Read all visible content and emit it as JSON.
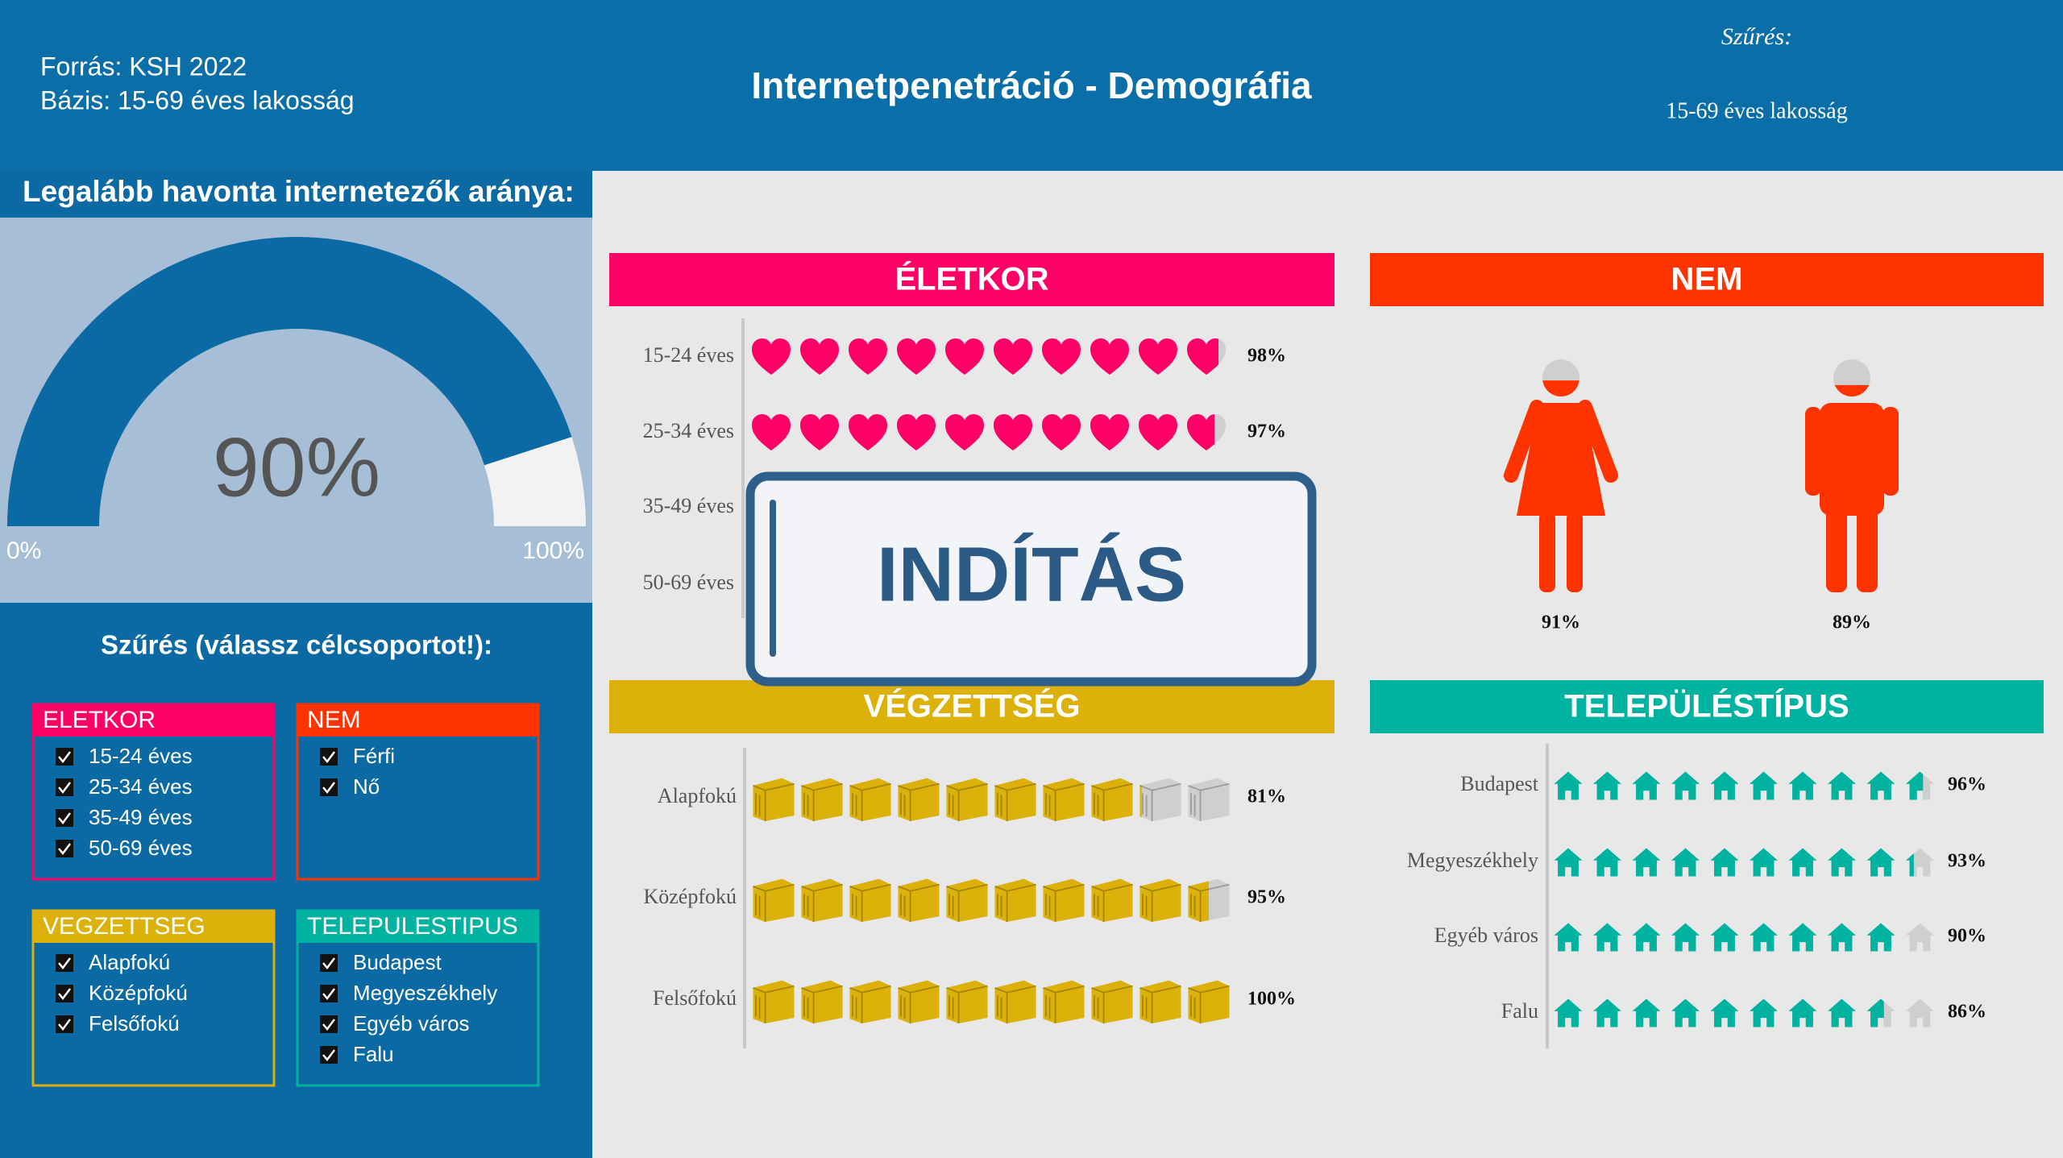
{
  "header": {
    "source": "Forrás: KSH 2022",
    "base": "Bázis: 15-69 éves lakosság",
    "title": "Internetpenetráció - Demográfia",
    "filter_label": "Szűrés:",
    "filter_value": "15-69 éves lakosság"
  },
  "gauge": {
    "title": "Legalább havonta internetezők aránya:",
    "value": 90,
    "value_label": "90%",
    "range": [
      0,
      100
    ],
    "range_labels": [
      "0%",
      "100%"
    ]
  },
  "filters": {
    "title": "Szűrés (válassz célcsoportot!):",
    "groups": [
      {
        "name": "ELETKOR",
        "color": "#ff0066",
        "items": [
          "15-24 éves",
          "25-34 éves",
          "35-49 éves",
          "50-69 éves"
        ]
      },
      {
        "name": "NEM",
        "color": "#ff3300",
        "items": [
          "Férfi",
          "Nő"
        ]
      },
      {
        "name": "VEGZETTSEG",
        "color": "#dcb20a",
        "items": [
          "Alapfokú",
          "Középfokú",
          "Felsőfokú"
        ]
      },
      {
        "name": "TELEPULESTIPUS",
        "color": "#00b2a0",
        "items": [
          "Budapest",
          "Megyeszékhely",
          "Egyéb város",
          "Falu"
        ]
      }
    ]
  },
  "panels": [
    {
      "title": "ÉLETKOR",
      "color": "#ff0066",
      "icon": "heart",
      "rows": [
        {
          "label": "15-24 éves",
          "value": 98,
          "value_label": "98%"
        },
        {
          "label": "25-34 éves",
          "value": 97,
          "value_label": "97%"
        },
        {
          "label": "35-49 éves"
        },
        {
          "label": "50-69 éves"
        }
      ]
    },
    {
      "title": "NEM",
      "color": "#ff3300",
      "icon": "person",
      "rows": [
        {
          "value": 91,
          "value_label": "91%"
        },
        {
          "value": 89,
          "value_label": "89%"
        }
      ]
    },
    {
      "title": "VÉGZETTSÉG",
      "color": "#dcb20a",
      "icon": "book",
      "rows": [
        {
          "label": "Alapfokú",
          "value": 81,
          "value_label": "81%"
        },
        {
          "label": "Középfokú",
          "value": 95,
          "value_label": "95%"
        },
        {
          "label": "Felsőfokú",
          "value": 100,
          "value_label": "100%"
        }
      ]
    },
    {
      "title": "TELEPÜLÉSTÍPUS",
      "color": "#00b2a0",
      "icon": "house",
      "rows": [
        {
          "label": "Budapest",
          "value": 96,
          "value_label": "96%"
        },
        {
          "label": "Megyeszékhely",
          "value": 93,
          "value_label": "93%"
        },
        {
          "label": "Egyéb város",
          "value": 90,
          "value_label": "90%"
        },
        {
          "label": "Falu",
          "value": 86,
          "value_label": "86%"
        }
      ]
    }
  ],
  "overlay": "INDÍTÁS"
}
